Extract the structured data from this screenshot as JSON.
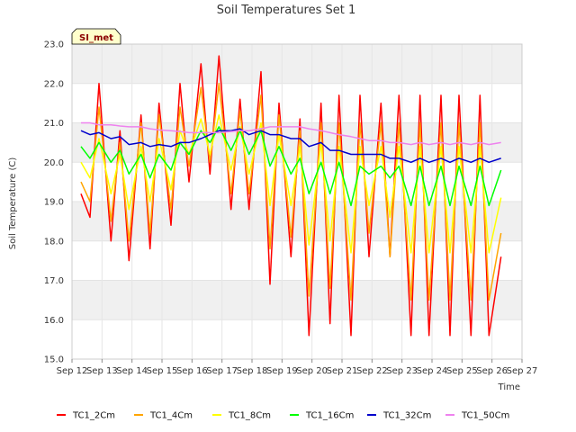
{
  "chart_data": {
    "type": "line",
    "title": "Soil Temperatures Set 1",
    "xlabel": "Time",
    "ylabel": "Soil Temperature (C)",
    "badge": "SI_met",
    "ylim": [
      15.0,
      23.0
    ],
    "xlim": [
      12.0,
      27.0
    ],
    "y_ticks": [
      "15.0",
      "16.0",
      "17.0",
      "18.0",
      "19.0",
      "20.0",
      "21.0",
      "22.0",
      "23.0"
    ],
    "x_ticks": [
      "Sep 12",
      "Sep 13",
      "Sep 14",
      "Sep 15",
      "Sep 16",
      "Sep 17",
      "Sep 18",
      "Sep 19",
      "Sep 20",
      "Sep 21",
      "Sep 22",
      "Sep 23",
      "Sep 24",
      "Sep 25",
      "Sep 26",
      "Sep 27"
    ],
    "grid": true,
    "legend_position": "bottom",
    "series": [
      {
        "name": "TC1_2Cm",
        "color": "#ff0000",
        "x": [
          12.3,
          12.6,
          12.9,
          13.3,
          13.6,
          13.9,
          14.3,
          14.6,
          14.9,
          15.3,
          15.6,
          15.9,
          16.3,
          16.6,
          16.9,
          17.3,
          17.6,
          17.9,
          18.3,
          18.6,
          18.9,
          19.3,
          19.6,
          19.9,
          20.3,
          20.6,
          20.9,
          21.3,
          21.6,
          21.9,
          22.3,
          22.6,
          22.9,
          23.3,
          23.6,
          23.9,
          24.3,
          24.6,
          24.9,
          25.3,
          25.6,
          25.9,
          26.3
        ],
        "y": [
          19.2,
          18.6,
          22.0,
          18.0,
          20.8,
          17.5,
          21.2,
          17.8,
          21.5,
          18.4,
          22.0,
          19.5,
          22.5,
          19.7,
          22.7,
          18.8,
          21.6,
          18.8,
          22.3,
          16.9,
          21.5,
          17.6,
          21.1,
          15.6,
          21.5,
          15.9,
          21.7,
          15.6,
          21.7,
          17.6,
          21.5,
          17.6,
          21.7,
          15.6,
          21.7,
          15.6,
          21.7,
          15.6,
          21.7,
          15.6,
          21.7,
          15.6,
          17.6
        ]
      },
      {
        "name": "TC1_4Cm",
        "color": "#ffa500",
        "x": [
          12.3,
          12.6,
          12.9,
          13.3,
          13.6,
          13.9,
          14.3,
          14.6,
          14.9,
          15.3,
          15.6,
          15.9,
          16.3,
          16.6,
          16.9,
          17.3,
          17.6,
          17.9,
          18.3,
          18.6,
          18.9,
          19.3,
          19.6,
          19.9,
          20.3,
          20.6,
          20.9,
          21.3,
          21.6,
          21.9,
          22.3,
          22.6,
          22.9,
          23.3,
          23.6,
          23.9,
          24.3,
          24.6,
          24.9,
          25.3,
          25.6,
          25.9,
          26.3
        ],
        "y": [
          19.5,
          19.0,
          21.4,
          18.5,
          20.5,
          18.0,
          21.0,
          18.2,
          21.2,
          18.8,
          21.4,
          19.9,
          21.9,
          20.0,
          22.0,
          19.2,
          21.3,
          19.2,
          21.7,
          17.8,
          21.2,
          18.1,
          20.8,
          16.6,
          21.0,
          16.8,
          21.0,
          16.5,
          21.0,
          18.2,
          21.0,
          17.6,
          21.0,
          16.5,
          21.0,
          16.5,
          21.0,
          16.5,
          21.0,
          16.5,
          21.0,
          16.5,
          18.2
        ]
      },
      {
        "name": "TC1_8Cm",
        "color": "#ffff00",
        "x": [
          12.3,
          12.6,
          12.9,
          13.3,
          13.6,
          13.9,
          14.3,
          14.6,
          14.9,
          15.3,
          15.6,
          15.9,
          16.3,
          16.6,
          16.9,
          17.3,
          17.6,
          17.9,
          18.3,
          18.6,
          18.9,
          19.3,
          19.6,
          19.9,
          20.3,
          20.6,
          20.9,
          21.3,
          21.6,
          21.9,
          22.3,
          22.6,
          22.9,
          23.3,
          23.6,
          23.9,
          24.3,
          24.6,
          24.9,
          25.3,
          25.6,
          25.9,
          26.3
        ],
        "y": [
          20.0,
          19.6,
          20.6,
          19.2,
          20.2,
          18.8,
          20.4,
          19.0,
          20.6,
          19.3,
          20.8,
          20.2,
          21.1,
          20.2,
          21.2,
          19.8,
          20.9,
          19.7,
          21.0,
          18.9,
          20.7,
          18.9,
          20.4,
          17.9,
          20.5,
          18.0,
          20.4,
          17.7,
          20.4,
          18.9,
          20.4,
          18.6,
          20.4,
          17.7,
          20.4,
          17.7,
          20.4,
          17.7,
          20.4,
          17.7,
          20.4,
          17.7,
          19.1
        ]
      },
      {
        "name": "TC1_16Cm",
        "color": "#00ff00",
        "x": [
          12.3,
          12.6,
          12.9,
          13.3,
          13.6,
          13.9,
          14.3,
          14.6,
          14.9,
          15.3,
          15.6,
          15.9,
          16.3,
          16.6,
          16.9,
          17.3,
          17.6,
          17.9,
          18.3,
          18.6,
          18.9,
          19.3,
          19.6,
          19.9,
          20.3,
          20.6,
          20.9,
          21.3,
          21.6,
          21.9,
          22.3,
          22.6,
          22.9,
          23.3,
          23.6,
          23.9,
          24.3,
          24.6,
          24.9,
          25.3,
          25.6,
          25.9,
          26.3
        ],
        "y": [
          20.4,
          20.1,
          20.5,
          20.0,
          20.3,
          19.7,
          20.2,
          19.6,
          20.2,
          19.8,
          20.5,
          20.2,
          20.8,
          20.5,
          20.9,
          20.3,
          20.8,
          20.2,
          20.8,
          19.9,
          20.4,
          19.7,
          20.1,
          19.2,
          20.0,
          19.2,
          20.0,
          18.9,
          19.9,
          19.7,
          19.9,
          19.6,
          19.9,
          18.9,
          19.9,
          18.9,
          19.9,
          18.9,
          19.9,
          18.9,
          19.9,
          18.9,
          19.8
        ]
      },
      {
        "name": "TC1_32Cm",
        "color": "#0000cc",
        "x": [
          12.3,
          12.6,
          12.9,
          13.3,
          13.6,
          13.9,
          14.3,
          14.6,
          14.9,
          15.3,
          15.6,
          15.9,
          16.3,
          16.6,
          16.9,
          17.3,
          17.6,
          17.9,
          18.3,
          18.6,
          18.9,
          19.3,
          19.6,
          19.9,
          20.3,
          20.6,
          20.9,
          21.3,
          21.6,
          21.9,
          22.3,
          22.6,
          22.9,
          23.3,
          23.6,
          23.9,
          24.3,
          24.6,
          24.9,
          25.3,
          25.6,
          25.9,
          26.3
        ],
        "y": [
          20.8,
          20.7,
          20.75,
          20.6,
          20.65,
          20.45,
          20.5,
          20.4,
          20.45,
          20.4,
          20.5,
          20.5,
          20.6,
          20.7,
          20.8,
          20.8,
          20.85,
          20.7,
          20.8,
          20.7,
          20.7,
          20.6,
          20.6,
          20.4,
          20.5,
          20.3,
          20.3,
          20.2,
          20.2,
          20.2,
          20.2,
          20.1,
          20.1,
          20.0,
          20.1,
          20.0,
          20.1,
          20.0,
          20.1,
          20.0,
          20.1,
          20.0,
          20.1
        ]
      },
      {
        "name": "TC1_50Cm",
        "color": "#ee82ee",
        "x": [
          12.3,
          12.6,
          12.9,
          13.3,
          13.6,
          13.9,
          14.3,
          14.6,
          14.9,
          15.3,
          15.6,
          15.9,
          16.3,
          16.6,
          16.9,
          17.3,
          17.6,
          17.9,
          18.3,
          18.6,
          18.9,
          19.3,
          19.6,
          19.9,
          20.3,
          20.6,
          20.9,
          21.3,
          21.6,
          21.9,
          22.3,
          22.6,
          22.9,
          23.3,
          23.6,
          23.9,
          24.3,
          24.6,
          24.9,
          25.3,
          25.6,
          25.9,
          26.3
        ],
        "y": [
          21.0,
          21.0,
          20.95,
          20.95,
          20.92,
          20.9,
          20.9,
          20.85,
          20.82,
          20.8,
          20.78,
          20.75,
          20.75,
          20.75,
          20.75,
          20.78,
          20.8,
          20.8,
          20.85,
          20.9,
          20.9,
          20.9,
          20.9,
          20.85,
          20.8,
          20.75,
          20.7,
          20.65,
          20.6,
          20.55,
          20.55,
          20.5,
          20.5,
          20.45,
          20.5,
          20.45,
          20.5,
          20.45,
          20.5,
          20.45,
          20.5,
          20.45,
          20.5
        ]
      }
    ]
  }
}
